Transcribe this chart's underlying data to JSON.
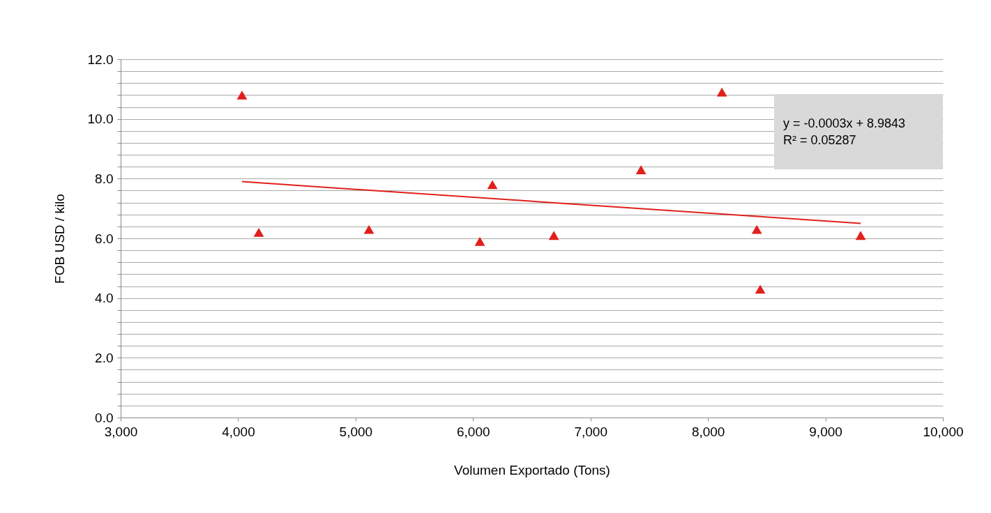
{
  "chart_data": {
    "type": "scatter",
    "xlabel": "Volumen Exportado (Tons)",
    "ylabel": "FOB USD / kilo",
    "grid": "y",
    "xlim": [
      3000,
      10000
    ],
    "xticks": [
      {
        "value": 3000,
        "label": "3,000"
      },
      {
        "value": 4000,
        "label": "4,000"
      },
      {
        "value": 5000,
        "label": "5,000"
      },
      {
        "value": 6000,
        "label": "6,000"
      },
      {
        "value": 7000,
        "label": "7,000"
      },
      {
        "value": 8000,
        "label": "8,000"
      },
      {
        "value": 9000,
        "label": "9,000"
      },
      {
        "value": 10000,
        "label": "10,000"
      }
    ],
    "ylim": [
      0,
      12
    ],
    "yticks": [
      {
        "value": 0,
        "label": "0.0"
      },
      {
        "value": 0.4,
        "label": null
      },
      {
        "value": 0.8,
        "label": null
      },
      {
        "value": 1.2,
        "label": null
      },
      {
        "value": 1.6,
        "label": null
      },
      {
        "value": 2,
        "label": "2.0"
      },
      {
        "value": 2.4,
        "label": null
      },
      {
        "value": 2.8,
        "label": null
      },
      {
        "value": 3.2,
        "label": null
      },
      {
        "value": 3.6,
        "label": null
      },
      {
        "value": 4,
        "label": "4.0"
      },
      {
        "value": 4.4,
        "label": null
      },
      {
        "value": 4.8,
        "label": null
      },
      {
        "value": 5.2,
        "label": null
      },
      {
        "value": 5.6,
        "label": null
      },
      {
        "value": 6,
        "label": "6.0"
      },
      {
        "value": 6.4,
        "label": null
      },
      {
        "value": 6.8,
        "label": null
      },
      {
        "value": 7.2,
        "label": null
      },
      {
        "value": 7.6,
        "label": null
      },
      {
        "value": 8,
        "label": "8.0"
      },
      {
        "value": 8.4,
        "label": null
      },
      {
        "value": 8.8,
        "label": null
      },
      {
        "value": 9.2,
        "label": null
      },
      {
        "value": 9.6,
        "label": null
      },
      {
        "value": 10,
        "label": "10.0"
      },
      {
        "value": 10.4,
        "label": null
      },
      {
        "value": 10.8,
        "label": null
      },
      {
        "value": 11.2,
        "label": null
      },
      {
        "value": 11.6,
        "label": null
      },
      {
        "value": 12,
        "label": "12.0"
      }
    ],
    "annotations": [
      "y  = -0.0003x + 8.9843",
      "R² = 0.05287"
    ],
    "series": [
      {
        "type": "scatter",
        "marker": "triangle",
        "color": "#e0201b",
        "x": [
          4033,
          4176,
          5114,
          6058,
          6165,
          6688,
          7430,
          8119,
          8416,
          8445,
          9300
        ],
        "values": [
          10.8,
          6.2,
          6.3,
          5.9,
          7.8,
          6.1,
          8.3,
          10.9,
          6.3,
          4.3,
          6.1
        ]
      },
      {
        "type": "line",
        "color": "#e0201b",
        "x": [
          4033,
          9300
        ],
        "values": [
          7.9,
          6.5
        ]
      }
    ]
  }
}
